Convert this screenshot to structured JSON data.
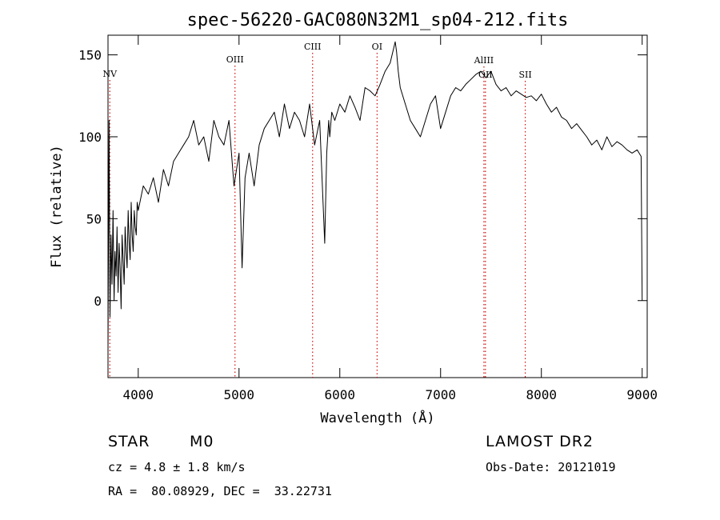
{
  "chart_data": {
    "type": "line",
    "title": "spec-56220-GAC080N32M1_sp04-212.fits",
    "xlabel": "Wavelength (Å)",
    "ylabel": "Flux (relative)",
    "xlim": [
      3700,
      9050
    ],
    "ylim": [
      -47,
      162
    ],
    "x_ticks": [
      4000,
      5000,
      6000,
      7000,
      8000,
      9000
    ],
    "y_ticks": [
      0,
      50,
      100,
      150
    ],
    "grid": false,
    "line_color": "#000000",
    "marker_color": "#d01010",
    "series": [
      {
        "x": [
          3700,
          3710,
          3720,
          3730,
          3740,
          3750,
          3760,
          3770,
          3780,
          3790,
          3800,
          3810,
          3820,
          3830,
          3840,
          3850,
          3860,
          3870,
          3880,
          3890,
          3900,
          3910,
          3920,
          3930,
          3940,
          3950,
          3960,
          3970,
          3980,
          3990,
          4000,
          4050,
          4100,
          4150,
          4200,
          4250,
          4300,
          4350,
          4400,
          4450,
          4500,
          4550,
          4600,
          4650,
          4700,
          4750,
          4800,
          4850,
          4900,
          4950,
          5000,
          5030,
          5060,
          5100,
          5150,
          5200,
          5250,
          5300,
          5350,
          5400,
          5450,
          5500,
          5550,
          5600,
          5650,
          5700,
          5750,
          5800,
          5850,
          5870,
          5890,
          5900,
          5920,
          5950,
          6000,
          6050,
          6100,
          6150,
          6200,
          6250,
          6300,
          6350,
          6400,
          6450,
          6500,
          6550,
          6563,
          6580,
          6600,
          6650,
          6700,
          6750,
          6800,
          6850,
          6900,
          6950,
          7000,
          7050,
          7100,
          7150,
          7200,
          7250,
          7300,
          7350,
          7400,
          7450,
          7500,
          7550,
          7600,
          7650,
          7700,
          7750,
          7800,
          7850,
          7900,
          7950,
          8000,
          8050,
          8100,
          8150,
          8200,
          8250,
          8300,
          8350,
          8400,
          8450,
          8500,
          8550,
          8600,
          8650,
          8700,
          8750,
          8800,
          8850,
          8900,
          8950,
          8990,
          9000
        ],
        "y": [
          -30,
          110,
          -10,
          40,
          10,
          55,
          0,
          30,
          15,
          45,
          5,
          35,
          20,
          -5,
          40,
          25,
          10,
          45,
          30,
          20,
          55,
          35,
          25,
          60,
          40,
          30,
          55,
          45,
          40,
          60,
          55,
          70,
          65,
          75,
          60,
          80,
          70,
          85,
          90,
          95,
          100,
          110,
          95,
          100,
          85,
          110,
          100,
          95,
          110,
          70,
          90,
          20,
          75,
          90,
          70,
          95,
          105,
          110,
          115,
          100,
          120,
          105,
          115,
          110,
          100,
          120,
          95,
          110,
          35,
          90,
          110,
          100,
          115,
          110,
          120,
          115,
          125,
          118,
          110,
          130,
          128,
          125,
          132,
          140,
          145,
          158,
          152,
          140,
          130,
          120,
          110,
          105,
          100,
          110,
          120,
          125,
          105,
          115,
          125,
          130,
          128,
          132,
          135,
          138,
          140,
          136,
          140,
          132,
          128,
          130,
          125,
          128,
          126,
          124,
          125,
          122,
          126,
          120,
          115,
          118,
          112,
          110,
          105,
          108,
          104,
          100,
          95,
          98,
          92,
          100,
          94,
          97,
          95,
          92,
          90,
          92,
          88,
          0
        ]
      }
    ],
    "line_markers": [
      {
        "label": "NV",
        "x": 3718
      },
      {
        "label": "OIII",
        "x": 4960
      },
      {
        "label": "CIII",
        "x": 5730
      },
      {
        "label": "OI",
        "x": 6370
      },
      {
        "label": "AlIII",
        "x": 7430
      },
      {
        "label": "OII",
        "x": 7445
      },
      {
        "label": "SII",
        "x": 7840
      }
    ]
  },
  "info": {
    "object_class": "STAR",
    "subclass": "M0",
    "survey": "LAMOST DR2",
    "cz": "cz = 4.8 ± 1.8 km/s",
    "obs_date": "Obs-Date: 20121019",
    "coords": "RA =  80.08929, DEC =  33.22731"
  }
}
